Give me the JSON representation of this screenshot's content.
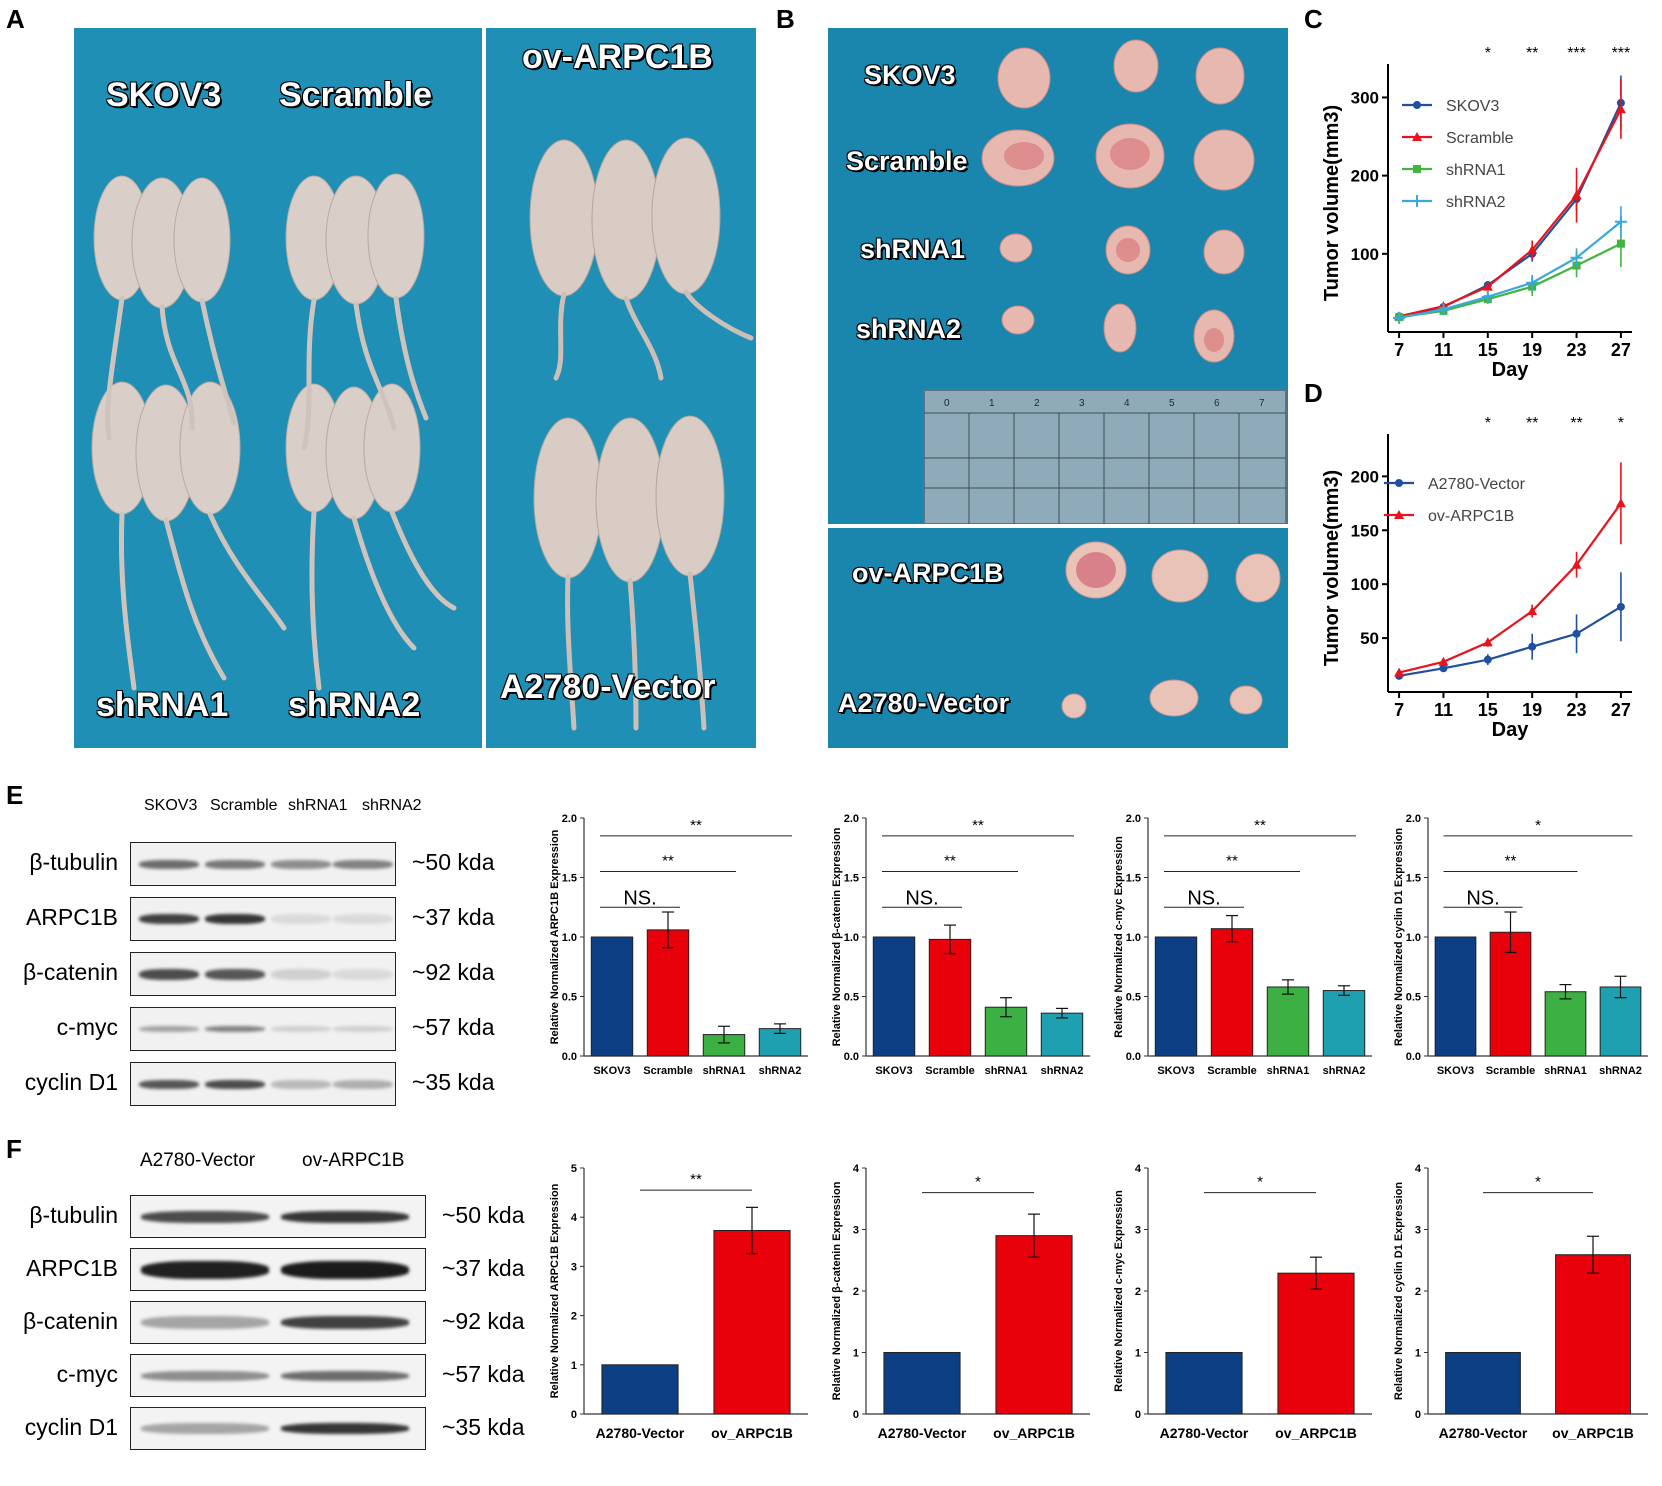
{
  "panels": {
    "A": {
      "letter": "A",
      "labels": [
        "SKOV3",
        "Scramble",
        "ov-ARPC1B",
        "shRNA1",
        "shRNA2",
        "A2780-Vector"
      ]
    },
    "B": {
      "letter": "B",
      "labels": [
        "SKOV3",
        "Scramble",
        "shRNA1",
        "shRNA2",
        "ov-ARPC1B",
        "A2780-Vector"
      ],
      "ruler_ticks": [
        "0",
        "1",
        "2",
        "3",
        "4",
        "5",
        "6",
        "7"
      ]
    },
    "C": {
      "letter": "C"
    },
    "D": {
      "letter": "D"
    },
    "E": {
      "letter": "E",
      "lanes": [
        "SKOV3",
        "Scramble",
        "shRNA1",
        "shRNA2"
      ],
      "proteins": [
        "β-tubulin",
        "ARPC1B",
        "β-catenin",
        "c-myc",
        "cyclin D1"
      ],
      "sizes": [
        "~50 kda",
        "~37 kda",
        "~92 kda",
        "~57 kda",
        "~35 kda"
      ]
    },
    "F": {
      "letter": "F",
      "lanes": [
        "A2780-Vector",
        "ov-ARPC1B"
      ],
      "proteins": [
        "β-tubulin",
        "ARPC1B",
        "β-catenin",
        "c-myc",
        "cyclin D1"
      ],
      "sizes": [
        "~50 kda",
        "~37 kda",
        "~92 kda",
        "~57 kda",
        "~35 kda"
      ]
    }
  },
  "colors": {
    "blue": "#0d3f85",
    "red": "#e8000b",
    "green": "#3cb043",
    "teal": "#1fa0b0",
    "lineBlue": "#1f4fa0",
    "lineRed": "#e8131b",
    "lineGreen": "#41b53f",
    "lineCyan": "#3aa8d8"
  },
  "chart_data": [
    {
      "id": "C",
      "type": "line",
      "xlabel": "Day",
      "ylabel": "Tumor volume(mm3)",
      "x": [
        7,
        11,
        15,
        19,
        23,
        27
      ],
      "xlim": [
        6,
        28
      ],
      "ylim": [
        0,
        330
      ],
      "yticks": [
        100,
        200,
        300
      ],
      "significance": [
        "*",
        "**",
        "***",
        "***"
      ],
      "sig_days": [
        15,
        19,
        23,
        27
      ],
      "series": [
        {
          "name": "SKOV3",
          "color": "#1f4fa0",
          "marker": "circle",
          "values": [
            20,
            32,
            60,
            100,
            170,
            293
          ],
          "err": [
            3,
            4,
            5,
            10,
            15,
            35
          ]
        },
        {
          "name": "Scramble",
          "color": "#e8131b",
          "marker": "triangle",
          "values": [
            20,
            33,
            58,
            105,
            175,
            285
          ],
          "err": [
            3,
            4,
            5,
            12,
            35,
            38
          ]
        },
        {
          "name": "shRNA1",
          "color": "#41b53f",
          "marker": "square",
          "values": [
            19,
            27,
            42,
            58,
            85,
            113
          ],
          "err": [
            3,
            4,
            6,
            12,
            15,
            30
          ]
        },
        {
          "name": "shRNA2",
          "color": "#3aa8d8",
          "marker": "plus",
          "values": [
            18,
            29,
            45,
            63,
            95,
            141
          ],
          "err": [
            3,
            4,
            6,
            10,
            12,
            20
          ]
        }
      ]
    },
    {
      "id": "D",
      "type": "line",
      "xlabel": "Day",
      "ylabel": "Tumor volume(mm3)",
      "x": [
        7,
        11,
        15,
        19,
        23,
        27
      ],
      "xlim": [
        6,
        28
      ],
      "ylim": [
        0,
        230
      ],
      "yticks": [
        50,
        100,
        150,
        200
      ],
      "significance": [
        "*",
        "**",
        "**",
        "*"
      ],
      "sig_days": [
        15,
        19,
        23,
        27
      ],
      "series": [
        {
          "name": "A2780-Vector",
          "color": "#1f4fa0",
          "marker": "circle",
          "values": [
            15,
            22,
            30,
            42,
            54,
            79
          ],
          "err": [
            2,
            3,
            5,
            12,
            18,
            32
          ]
        },
        {
          "name": "ov-ARPC1B",
          "color": "#e8131b",
          "marker": "triangle",
          "values": [
            18,
            28,
            46,
            75,
            118,
            175
          ],
          "err": [
            2,
            3,
            4,
            6,
            12,
            38
          ]
        }
      ]
    },
    {
      "id": "E1",
      "type": "bar",
      "ylabel": "Relative Normalized ARPC1B Expression",
      "categories": [
        "SKOV3",
        "Scramble",
        "shRNA1",
        "shRNA2"
      ],
      "values": [
        1.0,
        1.06,
        0.18,
        0.23
      ],
      "err": [
        0,
        0.15,
        0.07,
        0.04
      ],
      "ylim": [
        0,
        2.0
      ],
      "yticks": [
        "0.0",
        "0.5",
        "1.0",
        "1.5",
        "2.0"
      ],
      "brackets": [
        {
          "label": "**",
          "from": 0,
          "to": 3,
          "y": 1.85
        },
        {
          "label": "**",
          "from": 0,
          "to": 2,
          "y": 1.55
        },
        {
          "label": "NS.",
          "from": 0,
          "to": 1,
          "y": 1.25
        }
      ]
    },
    {
      "id": "E2",
      "type": "bar",
      "ylabel": "Relative Normalized β-catenin Expression",
      "categories": [
        "SKOV3",
        "Scramble",
        "shRNA1",
        "shRNA2"
      ],
      "values": [
        1.0,
        0.98,
        0.41,
        0.36
      ],
      "err": [
        0,
        0.12,
        0.08,
        0.04
      ],
      "ylim": [
        0,
        2.0
      ],
      "yticks": [
        "0.0",
        "0.5",
        "1.0",
        "1.5",
        "2.0"
      ],
      "brackets": [
        {
          "label": "**",
          "from": 0,
          "to": 3,
          "y": 1.85
        },
        {
          "label": "**",
          "from": 0,
          "to": 2,
          "y": 1.55
        },
        {
          "label": "NS.",
          "from": 0,
          "to": 1,
          "y": 1.25
        }
      ]
    },
    {
      "id": "E3",
      "type": "bar",
      "ylabel": "Relative Normalized c-myc Expression",
      "categories": [
        "SKOV3",
        "Scramble",
        "shRNA1",
        "shRNA2"
      ],
      "values": [
        1.0,
        1.07,
        0.58,
        0.55
      ],
      "err": [
        0,
        0.11,
        0.06,
        0.04
      ],
      "ylim": [
        0,
        2.0
      ],
      "yticks": [
        "0.0",
        "0.5",
        "1.0",
        "1.5",
        "2.0"
      ],
      "brackets": [
        {
          "label": "**",
          "from": 0,
          "to": 3,
          "y": 1.85
        },
        {
          "label": "**",
          "from": 0,
          "to": 2,
          "y": 1.55
        },
        {
          "label": "NS.",
          "from": 0,
          "to": 1,
          "y": 1.25
        }
      ]
    },
    {
      "id": "E4",
      "type": "bar",
      "ylabel": "Relative Normalized cyclin D1 Expression",
      "categories": [
        "SKOV3",
        "Scramble",
        "shRNA1",
        "shRNA2"
      ],
      "values": [
        1.0,
        1.04,
        0.54,
        0.58
      ],
      "err": [
        0,
        0.17,
        0.06,
        0.09
      ],
      "ylim": [
        0,
        2.0
      ],
      "yticks": [
        "0.0",
        "0.5",
        "1.0",
        "1.5",
        "2.0"
      ],
      "brackets": [
        {
          "label": "*",
          "from": 0,
          "to": 3,
          "y": 1.85
        },
        {
          "label": "**",
          "from": 0,
          "to": 2,
          "y": 1.55
        },
        {
          "label": "NS.",
          "from": 0,
          "to": 1,
          "y": 1.25
        }
      ]
    },
    {
      "id": "F1",
      "type": "bar",
      "ylabel": "Relative Normalized ARPC1B Expression",
      "categories": [
        "A2780-Vector",
        "ov_ARPC1B"
      ],
      "values": [
        1.0,
        3.73
      ],
      "err": [
        0,
        0.47
      ],
      "ylim": [
        0,
        5
      ],
      "yticks": [
        "0",
        "1",
        "2",
        "3",
        "4",
        "5"
      ],
      "brackets": [
        {
          "label": "**",
          "from": 0,
          "to": 1,
          "y": 4.55
        }
      ]
    },
    {
      "id": "F2",
      "type": "bar",
      "ylabel": "Relative Normalized β-catenin Expression",
      "categories": [
        "A2780-Vector",
        "ov_ARPC1B"
      ],
      "values": [
        1.0,
        2.9
      ],
      "err": [
        0,
        0.35
      ],
      "ylim": [
        0,
        4
      ],
      "yticks": [
        "0",
        "1",
        "2",
        "3",
        "4"
      ],
      "brackets": [
        {
          "label": "*",
          "from": 0,
          "to": 1,
          "y": 3.6
        }
      ]
    },
    {
      "id": "F3",
      "type": "bar",
      "ylabel": "Relative Normalized c-myc Expression",
      "categories": [
        "A2780-Vector",
        "ov_ARPC1B"
      ],
      "values": [
        1.0,
        2.29
      ],
      "err": [
        0,
        0.26
      ],
      "ylim": [
        0,
        4
      ],
      "yticks": [
        "0",
        "1",
        "2",
        "3",
        "4"
      ],
      "brackets": [
        {
          "label": "*",
          "from": 0,
          "to": 1,
          "y": 3.6
        }
      ]
    },
    {
      "id": "F4",
      "type": "bar",
      "ylabel": "Relative Normalized cyclin D1 Expression",
      "categories": [
        "A2780-Vector",
        "ov_ARPC1B"
      ],
      "values": [
        1.0,
        2.59
      ],
      "err": [
        0,
        0.3
      ],
      "ylim": [
        0,
        4
      ],
      "yticks": [
        "0",
        "1",
        "2",
        "3",
        "4"
      ],
      "brackets": [
        {
          "label": "*",
          "from": 0,
          "to": 1,
          "y": 3.6
        }
      ]
    }
  ]
}
